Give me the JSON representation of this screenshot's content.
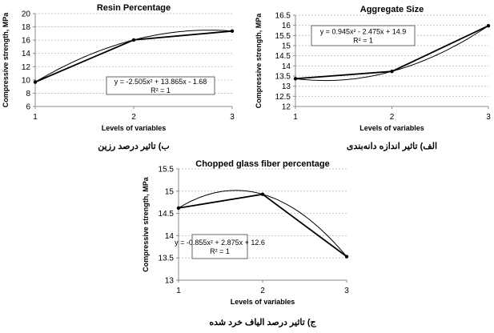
{
  "chart_data": [
    {
      "type": "line",
      "title": "Resin Percentage",
      "xlabel": "Levels of variables",
      "ylabel": "Compressive strength, MPa",
      "x": [
        1,
        2,
        3
      ],
      "values": [
        9.68,
        16.03,
        17.37
      ],
      "xlim": [
        1,
        3
      ],
      "ylim": [
        6,
        20
      ],
      "yticks": [
        6,
        8,
        10,
        12,
        14,
        16,
        18,
        20
      ],
      "xticks": [
        1,
        2,
        3
      ],
      "grid": "horizontal dashed",
      "trendline": {
        "type": "polynomial-2",
        "coefficients": [
          -2.505,
          13.865,
          -1.68
        ],
        "equation": "y = -2.505x² + 13.865x - 1.68",
        "r2": "R² = 1"
      },
      "caption": "ب) تاثیر درصد رزین"
    },
    {
      "type": "line",
      "title": "Aggregate Size",
      "xlabel": "Levels of variables",
      "ylabel": "Compressive strength, MPa",
      "x": [
        1,
        2,
        3
      ],
      "values": [
        13.37,
        13.73,
        15.98
      ],
      "xlim": [
        1,
        3
      ],
      "ylim": [
        12,
        16.5
      ],
      "yticks": [
        12,
        12.5,
        13,
        13.5,
        14,
        14.5,
        15,
        15.5,
        16,
        16.5
      ],
      "xticks": [
        1,
        2,
        3
      ],
      "grid": "horizontal dashed",
      "trendline": {
        "type": "polynomial-2",
        "coefficients": [
          0.945,
          -2.475,
          14.9
        ],
        "equation": "y = 0.945x² - 2.475x + 14.9",
        "r2": "R² = 1"
      },
      "caption": "الف) تاثیر اندازه دانه‌بندی"
    },
    {
      "type": "line",
      "title": "Chopped glass fiber percentage",
      "xlabel": "Levels of variables",
      "ylabel": "Compressive strength, MPa",
      "x": [
        1,
        2,
        3
      ],
      "values": [
        14.62,
        14.93,
        13.53
      ],
      "xlim": [
        1,
        3
      ],
      "ylim": [
        13,
        15.5
      ],
      "yticks": [
        13,
        13.5,
        14,
        14.5,
        15,
        15.5
      ],
      "xticks": [
        1,
        2,
        3
      ],
      "grid": "horizontal dashed",
      "trendline": {
        "type": "polynomial-2",
        "coefficients": [
          -0.855,
          2.875,
          12.6
        ],
        "equation": "y = -0.855x² + 2.875x + 12.6",
        "r2": "R² = 1"
      },
      "caption": "ج) تاثیر درصد الیاف خرد شده"
    }
  ]
}
